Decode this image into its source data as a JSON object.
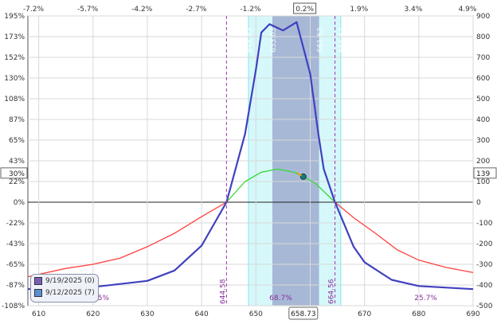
{
  "chart_data": {
    "type": "line",
    "x_axis": {
      "range": [
        608,
        690
      ],
      "ticks": [
        "610",
        "620",
        "630",
        "640",
        "650",
        "660",
        "670",
        "680",
        "690"
      ],
      "current_price": "658.73"
    },
    "top_axis": {
      "ticks": [
        "-7.2%",
        "-5.7%",
        "-4.2%",
        "-2.7%",
        "-1.2%",
        "0.2%",
        "1.9%",
        "3.4%",
        "4.9%"
      ],
      "highlight": "0.2%"
    },
    "left_axis": {
      "ticks": [
        "195%",
        "173%",
        "152%",
        "130%",
        "108%",
        "87%",
        "65%",
        "43%",
        "22%",
        "0%",
        "-22%",
        "-43%",
        "-65%",
        "-87%",
        "-108%"
      ],
      "marker": "30%"
    },
    "right_axis": {
      "range": [
        -500,
        900
      ],
      "ticks": [
        "900",
        "800",
        "700",
        "600",
        "500",
        "400",
        "300",
        "200",
        "100",
        "0",
        "-100",
        "-200",
        "-300",
        "-400",
        "-500"
      ],
      "marker": "139"
    },
    "series": [
      {
        "name": "9/19/2025 (0)",
        "color": "#4040c0",
        "x": [
          608,
          620,
          630,
          635,
          640,
          644.58,
          648,
          650,
          651,
          652.5,
          655,
          657.5,
          660,
          661.5,
          662.5,
          664.56,
          668,
          670,
          675,
          680,
          690
        ],
        "y": [
          -420,
          -410,
          -380,
          -330,
          -210,
          0,
          330,
          640,
          820,
          860,
          830,
          870,
          620,
          330,
          160,
          0,
          -215,
          -290,
          -375,
          -405,
          -420
        ]
      },
      {
        "name": "9/12/2025 (7)",
        "color": "#ff4040",
        "x": [
          608,
          615,
          620,
          625,
          630,
          635,
          640,
          644.58,
          648,
          651,
          654,
          657,
          659,
          661,
          664.56,
          668,
          672,
          676,
          680,
          685,
          690
        ],
        "y": [
          -360,
          -320,
          -300,
          -270,
          -215,
          -150,
          -70,
          0,
          100,
          145,
          160,
          145,
          120,
          90,
          0,
          -75,
          -150,
          -230,
          -280,
          -315,
          -340
        ]
      }
    ],
    "breakevens": [
      "644.58",
      "664.56"
    ],
    "region_labels": [
      "5.5%",
      "68.7%",
      "25.7%"
    ],
    "strike_labels": [
      "648.63",
      "653.03",
      "661.63",
      "665.63"
    ]
  },
  "legend": {
    "items": [
      {
        "label": "9/19/2025 (0)",
        "color": "#7a5fb0"
      },
      {
        "label": "9/12/2025 (7)",
        "color": "#5a8fd0"
      }
    ]
  }
}
